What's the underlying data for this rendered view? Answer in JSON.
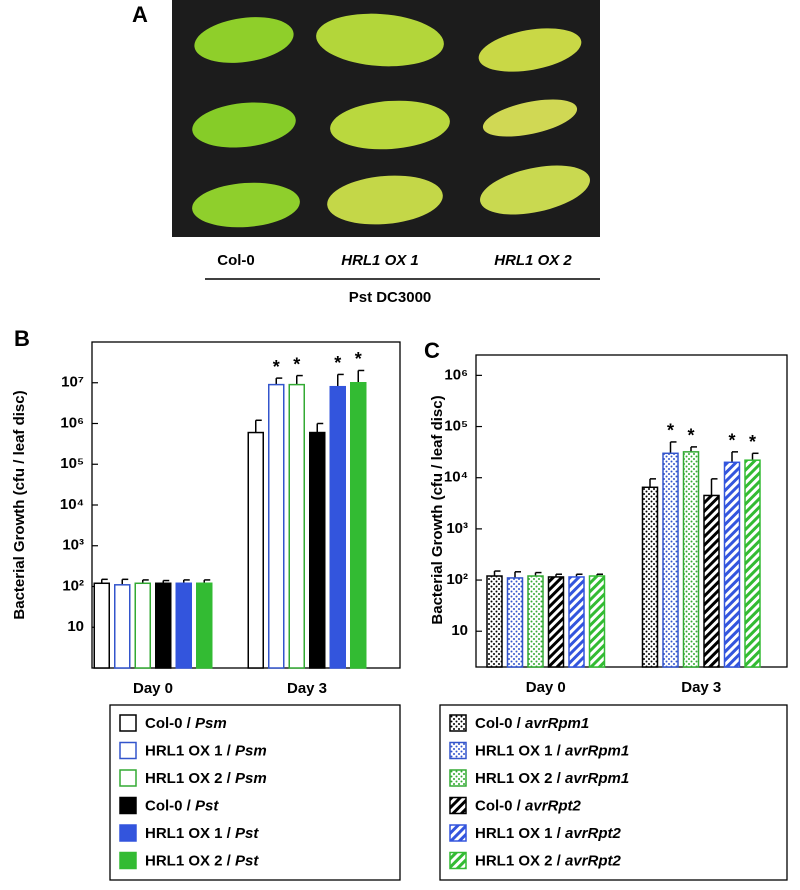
{
  "panel_a": {
    "label": "A",
    "genotypes": [
      "Col-0",
      "HRL1 OX 1",
      "HRL1 OX 2"
    ],
    "treatment": "Pst DC3000"
  },
  "chart_data": [
    {
      "type": "bar",
      "panel_label": "B",
      "y_label": "Bacterial Growth (cfu / leaf disc)",
      "log_scale": true,
      "categories": [
        "Day 0",
        "Day 3"
      ],
      "ylim": [
        1,
        100000000
      ],
      "yticks": [
        10,
        {
          "value": 100,
          "label": "10²"
        },
        {
          "value": 1000,
          "label": "10³"
        },
        {
          "value": 10000,
          "label": "10⁴"
        },
        {
          "value": 100000,
          "label": "10⁵"
        },
        {
          "value": 1000000,
          "label": "10⁶"
        },
        {
          "value": 10000000,
          "label": "10⁷"
        }
      ],
      "series": [
        {
          "name": "Col-0 / Psm",
          "color": "#000000",
          "fill": "open",
          "values": [
            120,
            600000
          ],
          "errors": [
            30,
            600000
          ],
          "significance": [
            null,
            null
          ]
        },
        {
          "name": "HRL1 OX 1 / Psm",
          "color": "#3355cc",
          "fill": "open",
          "values": [
            110,
            9000000
          ],
          "errors": [
            40,
            4000000
          ],
          "significance": [
            null,
            "*"
          ]
        },
        {
          "name": "HRL1 OX 2 / Psm",
          "color": "#33aa33",
          "fill": "open",
          "values": [
            120,
            9000000
          ],
          "errors": [
            25,
            6000000
          ],
          "significance": [
            null,
            "*"
          ]
        },
        {
          "name": "Col-0 / Pst",
          "color": "#000000",
          "fill": "solid",
          "values": [
            120,
            600000
          ],
          "errors": [
            20,
            400000
          ],
          "significance": [
            null,
            null
          ]
        },
        {
          "name": "HRL1 OX 1 / Pst",
          "color": "#3355dd",
          "fill": "solid",
          "values": [
            120,
            8000000
          ],
          "errors": [
            25,
            8000000
          ],
          "significance": [
            null,
            "*"
          ]
        },
        {
          "name": "HRL1 OX 2 / Pst",
          "color": "#33bb33",
          "fill": "solid",
          "values": [
            120,
            10000000
          ],
          "errors": [
            25,
            10000000
          ],
          "significance": [
            null,
            "*"
          ]
        }
      ]
    },
    {
      "type": "bar",
      "panel_label": "C",
      "y_label": "Bacterial Growth (cfu / leaf disc)",
      "log_scale": true,
      "categories": [
        "Day 0",
        "Day 3"
      ],
      "ylim": [
        2,
        2500000
      ],
      "yticks": [
        10,
        {
          "value": 100,
          "label": "10²"
        },
        {
          "value": 1000,
          "label": "10³"
        },
        {
          "value": 10000,
          "label": "10⁴"
        },
        {
          "value": 100000,
          "label": "10⁵"
        },
        {
          "value": 1000000,
          "label": "10⁶"
        }
      ],
      "series": [
        {
          "name": "Col-0 / avrRpm1",
          "color": "#000000",
          "fill": "dots",
          "values": [
            120,
            6500
          ],
          "errors": [
            30,
            3000
          ],
          "significance": [
            null,
            null
          ]
        },
        {
          "name": "HRL1 OX 1 / avrRpm1",
          "color": "#3355cc",
          "fill": "dots",
          "values": [
            110,
            30000
          ],
          "errors": [
            35,
            20000
          ],
          "significance": [
            null,
            "*"
          ]
        },
        {
          "name": "HRL1 OX 2 / avrRpm1",
          "color": "#33aa33",
          "fill": "dots",
          "values": [
            120,
            32000
          ],
          "errors": [
            20,
            8000
          ],
          "significance": [
            null,
            "*"
          ]
        },
        {
          "name": "Col-0 / avrRpt2",
          "color": "#000000",
          "fill": "hatch",
          "values": [
            115,
            4500
          ],
          "errors": [
            15,
            5000
          ],
          "significance": [
            null,
            null
          ]
        },
        {
          "name": "HRL1 OX 1 / avrRpt2",
          "color": "#3355dd",
          "fill": "hatch",
          "values": [
            115,
            20000
          ],
          "errors": [
            15,
            12000
          ],
          "significance": [
            null,
            "*"
          ]
        },
        {
          "name": "HRL1 OX 2 / avrRpt2",
          "color": "#33bb33",
          "fill": "hatch",
          "values": [
            120,
            22000
          ],
          "errors": [
            10,
            8000
          ],
          "significance": [
            null,
            "*"
          ]
        }
      ]
    }
  ]
}
